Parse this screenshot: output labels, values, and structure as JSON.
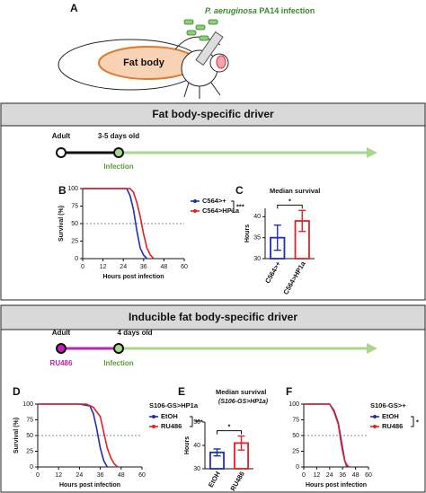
{
  "figure_a": {
    "label": "A",
    "pathogen": "P. aeruginosa",
    "strain": "PA14 infection",
    "fat_body": "Fat body"
  },
  "section_1": {
    "title": "Fat body-specific driver",
    "timeline": {
      "start": "Adult",
      "age": "3-5 days old",
      "event": "Infection"
    }
  },
  "section_2": {
    "title": "Inducible fat body-specific driver",
    "timeline": {
      "start": "Adult",
      "age": "4 days old",
      "treatment": "RU486",
      "event": "Infection"
    }
  },
  "chart_data": [
    {
      "type": "line",
      "label": "B",
      "xlabel": "Hours post infection",
      "ylabel": "Survival (%)",
      "xlim": [
        0,
        60
      ],
      "xticks": [
        0,
        12,
        24,
        36,
        48,
        60
      ],
      "ylim": [
        0,
        100
      ],
      "yticks": [
        0,
        25,
        50,
        75,
        100
      ],
      "hline": 50,
      "annotation": "***",
      "series": [
        {
          "name": "C564>+",
          "color": "#1f2fb0",
          "x": [
            0,
            26,
            28,
            30,
            32,
            34,
            36,
            38
          ],
          "values": [
            100,
            100,
            90,
            70,
            40,
            15,
            5,
            0
          ]
        },
        {
          "name": "C564>HP1a",
          "color": "#e0202a",
          "x": [
            0,
            28,
            30,
            32,
            34,
            36,
            38,
            40,
            42
          ],
          "values": [
            100,
            100,
            95,
            80,
            60,
            35,
            15,
            5,
            0
          ]
        }
      ]
    },
    {
      "type": "bar",
      "label": "C",
      "title": "Median survival",
      "ylabel": "Hours",
      "categories": [
        "C564>+",
        "C564>HP1a"
      ],
      "values": [
        35,
        39
      ],
      "errors": [
        3,
        2.5
      ],
      "colors": [
        "#1f2fb0",
        "#e0202a"
      ],
      "ylim": [
        30,
        42
      ],
      "yticks": [
        30,
        35,
        40
      ],
      "annotation": "*"
    },
    {
      "type": "line",
      "label": "D",
      "xlabel": "Hours post infection",
      "ylabel": "Survival (%)",
      "legend_title": "S106-GS>HP1a",
      "xlim": [
        0,
        60
      ],
      "xticks": [
        0,
        12,
        24,
        36,
        48,
        60
      ],
      "ylim": [
        0,
        100
      ],
      "yticks": [
        0,
        25,
        50,
        75,
        100
      ],
      "hline": 50,
      "annotation": "***",
      "series": [
        {
          "name": "EtOH",
          "color": "#1f2fb0",
          "x": [
            0,
            24,
            30,
            32,
            34,
            36,
            38,
            40
          ],
          "values": [
            100,
            100,
            97,
            85,
            60,
            30,
            10,
            0
          ]
        },
        {
          "name": "RU486",
          "color": "#e0202a",
          "x": [
            0,
            28,
            32,
            36,
            38,
            40,
            42,
            44,
            46
          ],
          "values": [
            100,
            100,
            95,
            80,
            55,
            30,
            15,
            5,
            0
          ]
        }
      ]
    },
    {
      "type": "bar",
      "label": "E",
      "title": "Median survival",
      "subtitle": "(S106-GS>HP1a)",
      "ylabel": "Hours",
      "categories": [
        "EtOH",
        "RU486"
      ],
      "values": [
        37,
        41
      ],
      "errors": [
        1.5,
        3
      ],
      "colors": [
        "#1f2fb0",
        "#e0202a"
      ],
      "ylim": [
        30,
        50
      ],
      "yticks": [
        30,
        40,
        50
      ],
      "annotation": "*"
    },
    {
      "type": "line",
      "label": "F",
      "xlabel": "Hours post infection",
      "legend_title": "S106-GS>+",
      "xlim": [
        0,
        60
      ],
      "xticks": [
        0,
        12,
        24,
        36,
        48,
        60
      ],
      "ylim": [
        0,
        100
      ],
      "yticks": [
        0,
        25,
        50,
        75,
        100
      ],
      "hline": 50,
      "annotation": "*",
      "series": [
        {
          "name": "EtOH",
          "color": "#1f2fb0",
          "x": [
            0,
            24,
            28,
            32,
            34,
            36,
            38,
            40
          ],
          "values": [
            100,
            100,
            90,
            70,
            50,
            30,
            10,
            0
          ]
        },
        {
          "name": "RU486",
          "color": "#e0202a",
          "x": [
            0,
            24,
            28,
            32,
            34,
            36,
            38,
            40,
            42
          ],
          "values": [
            100,
            100,
            88,
            68,
            45,
            25,
            10,
            3,
            0
          ]
        }
      ]
    }
  ]
}
